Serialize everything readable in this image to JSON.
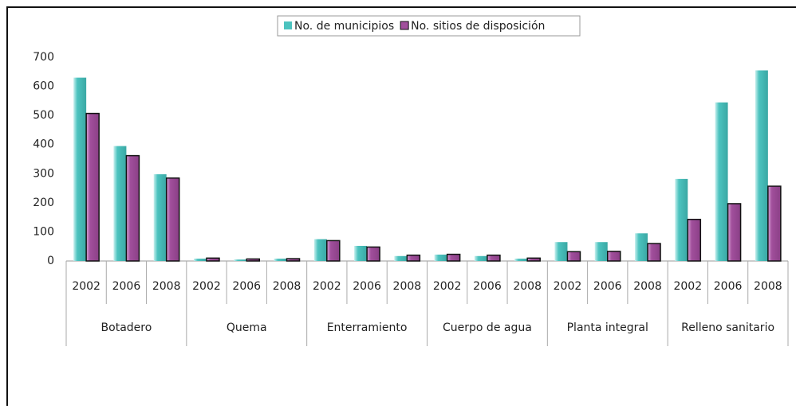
{
  "chart_data": {
    "type": "bar",
    "categories": [
      "2002",
      "2006",
      "2008",
      "2002",
      "2006",
      "2008",
      "2002",
      "2006",
      "2008",
      "2002",
      "2006",
      "2008",
      "2002",
      "2006",
      "2008",
      "2002",
      "2006",
      "2008"
    ],
    "groups": [
      "Botadero",
      "Quema",
      "Enterramiento",
      "Cuerpo de agua",
      "Planta integral",
      "Relleno sanitario"
    ],
    "series": [
      {
        "name": "No. de municipios",
        "color": "#4cc3bf",
        "values": [
          630,
          395,
          298,
          8,
          5,
          8,
          75,
          52,
          17,
          22,
          17,
          8,
          65,
          65,
          95,
          282,
          545,
          655
        ]
      },
      {
        "name": "No. sitios de disposición",
        "color": "#a14f9c",
        "values": [
          507,
          362,
          285,
          10,
          7,
          8,
          70,
          48,
          20,
          23,
          20,
          10,
          32,
          33,
          60,
          143,
          197,
          257
        ]
      }
    ],
    "ylim": [
      0,
      700
    ],
    "yticks": [
      0,
      100,
      200,
      300,
      400,
      500,
      600,
      700
    ],
    "legend": "top"
  }
}
